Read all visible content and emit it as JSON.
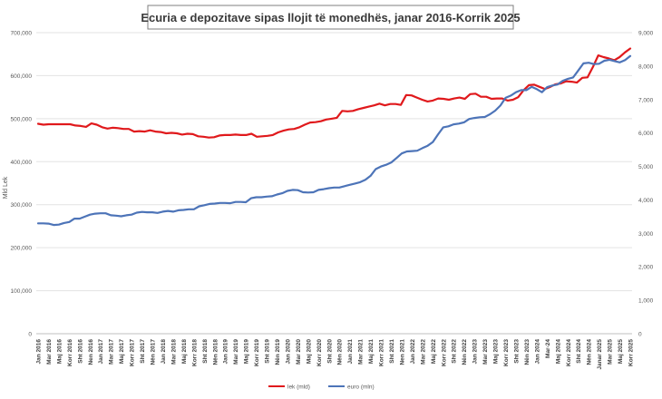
{
  "chart_data": {
    "type": "line",
    "title": "Ecuria e depozitave sipas llojit të monedhës, janar 2016-Korrik 2025",
    "ylabel_left": "Mld Lek",
    "ylabel_right": "",
    "ylim_left": [
      0,
      700000
    ],
    "ylim_right": [
      0,
      9000
    ],
    "yticks_left": [
      "0",
      "100,000",
      "200,000",
      "300,000",
      "400,000",
      "500,000",
      "600,000",
      "700,000"
    ],
    "yticks_right": [
      "0",
      "1,000",
      "2,000",
      "3,000",
      "4,000",
      "5,000",
      "6,000",
      "7,000",
      "8,000",
      "9,000"
    ],
    "x_tick_labels": [
      "Jan 2016",
      "Mar 2016",
      "Maj 2016",
      "Korr 2016",
      "Sht 2016",
      "Nen 2016",
      "Jan 2017",
      "Mar 2017",
      "Maj 2017",
      "Korr 2017",
      "Sht 2017",
      "Nën 2017",
      "Jan 2018",
      "Mar 2018",
      "Maj 2018",
      "Korr 2018",
      "Sht 2018",
      "Nën 2018",
      "Jan 2019",
      "Mar 2019",
      "Maj 2019",
      "Korr 2019",
      "Sht 2019",
      "Nën 2019",
      "Jan 2020",
      "Mar 2020",
      "Maj 2020",
      "Korr 2020",
      "Sht 2020",
      "Nën 2020",
      "Jan 2021",
      "Mar 2021",
      "Maj 2021",
      "Korr 2021",
      "Sht 2021",
      "Nen 2021",
      "Jan 2022",
      "Mar 2022",
      "Maj 2022",
      "Korr 2022",
      "Sht 2022",
      "Nën 2022",
      "Jan 2023",
      "Mar 2023",
      "Maj 2023",
      "Korr 2023",
      "Sht 2023",
      "Nën 2023",
      "Jan 2024",
      "Mar-24",
      "Maj 2024",
      "Korr 2024",
      "Sht 2024",
      "Nën 2024",
      "Janar 2025",
      "Mar 2025",
      "Maj 2025",
      "Korr 2025"
    ],
    "legend_position": "bottom-center",
    "grid": true,
    "series": [
      {
        "name": "lek (mld)",
        "axis": "left",
        "color": "#e0191c",
        "values": [
          488000,
          486000,
          487000,
          487000,
          487000,
          487000,
          487000,
          484000,
          483000,
          481000,
          489000,
          486000,
          480000,
          477000,
          479000,
          478000,
          476000,
          476000,
          470000,
          471000,
          470000,
          473000,
          470000,
          469000,
          466000,
          467000,
          466000,
          463000,
          465000,
          464000,
          459000,
          458000,
          456000,
          457000,
          461000,
          462000,
          462000,
          463000,
          462000,
          462000,
          465000,
          458000,
          459000,
          460000,
          462000,
          468000,
          472000,
          475000,
          476000,
          480000,
          486000,
          491000,
          492000,
          494000,
          498000,
          500000,
          502000,
          518000,
          517000,
          518000,
          522000,
          525000,
          528000,
          531000,
          535000,
          531000,
          534000,
          534000,
          532000,
          555000,
          554000,
          549000,
          544000,
          540000,
          542000,
          547000,
          546000,
          544000,
          547000,
          549000,
          546000,
          557000,
          558000,
          551000,
          551000,
          546000,
          547000,
          547000,
          542000,
          544000,
          550000,
          566000,
          578000,
          579000,
          574000,
          569000,
          574000,
          580000,
          582000,
          587000,
          586000,
          584000,
          595000,
          596000,
          620000,
          647000,
          643000,
          640000,
          636000,
          643000,
          654000,
          663000
        ]
      },
      {
        "name": "euro (mln)",
        "axis": "right",
        "color": "#4d74b8",
        "values": [
          3300,
          3300,
          3290,
          3250,
          3260,
          3310,
          3340,
          3440,
          3440,
          3500,
          3560,
          3590,
          3600,
          3600,
          3540,
          3530,
          3510,
          3540,
          3560,
          3620,
          3640,
          3630,
          3630,
          3610,
          3650,
          3670,
          3650,
          3690,
          3700,
          3720,
          3720,
          3810,
          3840,
          3880,
          3890,
          3910,
          3910,
          3900,
          3940,
          3940,
          3930,
          4050,
          4080,
          4080,
          4100,
          4110,
          4160,
          4200,
          4270,
          4300,
          4290,
          4230,
          4220,
          4230,
          4300,
          4320,
          4350,
          4370,
          4370,
          4410,
          4450,
          4490,
          4530,
          4600,
          4720,
          4920,
          5000,
          5050,
          5120,
          5250,
          5390,
          5450,
          5460,
          5470,
          5550,
          5620,
          5730,
          5960,
          6170,
          6200,
          6260,
          6280,
          6320,
          6420,
          6450,
          6470,
          6480,
          6560,
          6670,
          6820,
          7050,
          7120,
          7220,
          7280,
          7280,
          7380,
          7310,
          7220,
          7370,
          7420,
          7450,
          7560,
          7620,
          7660,
          7870,
          8080,
          8100,
          8060,
          8070,
          8160,
          8190,
          8150,
          8110,
          8180,
          8300
        ]
      }
    ]
  }
}
